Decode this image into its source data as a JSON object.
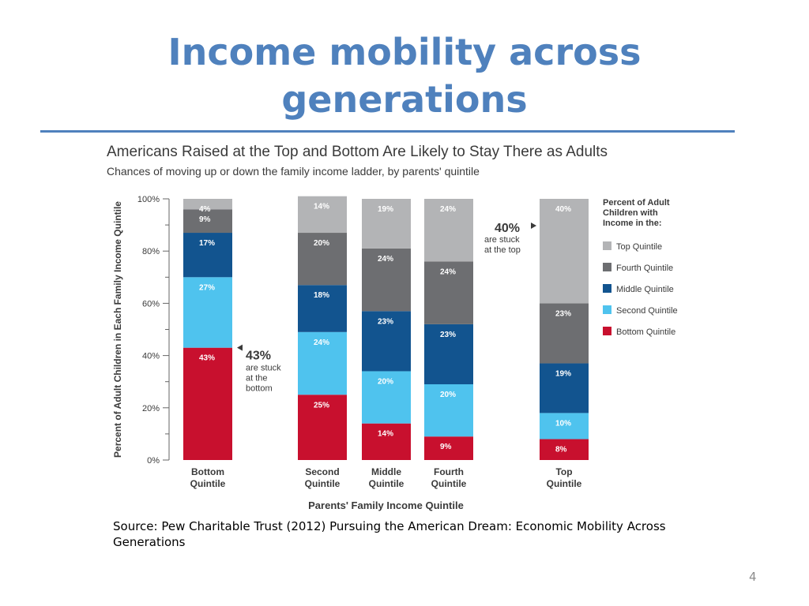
{
  "slide": {
    "title_line1": "Income mobility across",
    "title_line2": "generations",
    "source": "Source: Pew Charitable Trust (2012) Pursuing the American Dream: Economic Mobility Across Generations",
    "page_number": "4"
  },
  "chart_data": {
    "type": "bar",
    "stacked": true,
    "title": "Americans Raised at the Top and Bottom Are Likely to Stay There as Adults",
    "subtitle": "Chances of moving up or down the family income ladder, by parents' quintile",
    "xlabel": "Parents' Family Income Quintile",
    "ylabel": "Percent of Adult Children in Each Family Income Quintile",
    "ylim": [
      0,
      100
    ],
    "yticks": [
      "0%",
      "20%",
      "40%",
      "60%",
      "80%",
      "100%"
    ],
    "categories": [
      [
        "Bottom",
        "Quintile"
      ],
      [
        "Second",
        "Quintile"
      ],
      [
        "Middle",
        "Quintile"
      ],
      [
        "Fourth",
        "Quintile"
      ],
      [
        "Top",
        "Quintile"
      ]
    ],
    "series": [
      {
        "name": "Bottom Quintile",
        "color": "#c8102e",
        "values": [
          43,
          25,
          14,
          9,
          8
        ]
      },
      {
        "name": "Second Quintile",
        "color": "#4fc3ee",
        "values": [
          27,
          24,
          20,
          20,
          10
        ]
      },
      {
        "name": "Middle Quintile",
        "color": "#12548f",
        "values": [
          17,
          18,
          23,
          23,
          19
        ]
      },
      {
        "name": "Fourth Quintile",
        "color": "#6d6e71",
        "values": [
          9,
          20,
          24,
          24,
          23
        ]
      },
      {
        "name": "Top Quintile",
        "color": "#b3b4b6",
        "values": [
          4,
          14,
          19,
          24,
          40
        ]
      }
    ],
    "legend": {
      "position": "right",
      "title": [
        "Percent of Adult",
        "Children with",
        "Income in the:"
      ],
      "order": [
        "Top Quintile",
        "Fourth Quintile",
        "Middle Quintile",
        "Second Quintile",
        "Bottom Quintile"
      ]
    },
    "annotations": [
      {
        "big": "43%",
        "lines": [
          "are stuck",
          "at the",
          "bottom"
        ],
        "category": 0
      },
      {
        "big": "40%",
        "lines": [
          "are stuck",
          "at the top"
        ],
        "category": 4
      }
    ]
  }
}
